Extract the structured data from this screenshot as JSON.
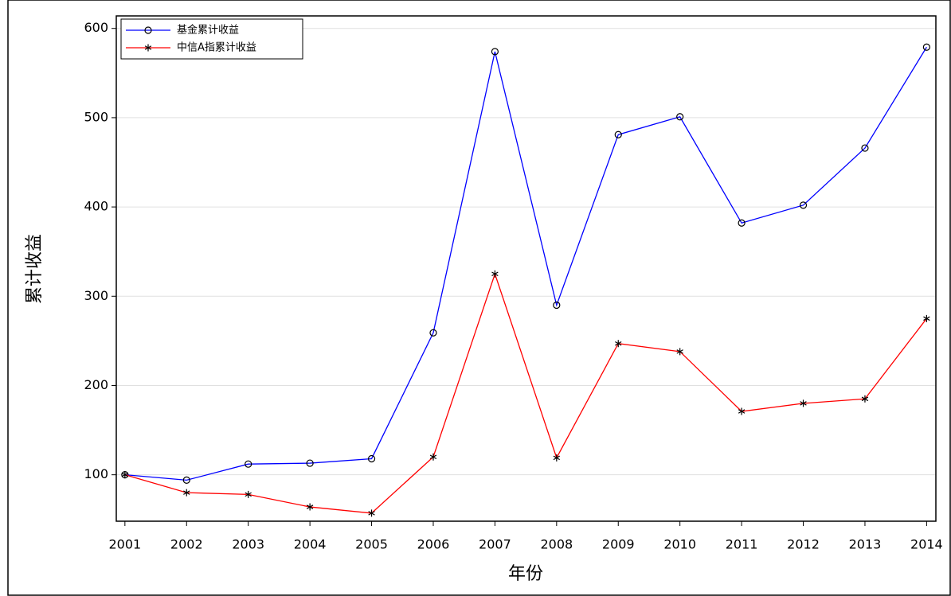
{
  "chart_data": {
    "type": "line",
    "x_label": "年份",
    "y_label": "累计收益",
    "x": [
      2001,
      2002,
      2003,
      2004,
      2005,
      2006,
      2007,
      2008,
      2009,
      2010,
      2011,
      2012,
      2013,
      2014
    ],
    "series": [
      {
        "name": "基金累计收益",
        "color": "#0000ff",
        "marker": "circle",
        "values": [
          100,
          94,
          112,
          113,
          118,
          259,
          574,
          290,
          481,
          501,
          382,
          402,
          466,
          579
        ]
      },
      {
        "name": "中信A指累计收益",
        "color": "#ff0000",
        "marker": "star",
        "values": [
          100,
          80,
          78,
          64,
          57,
          120,
          325,
          119,
          247,
          238,
          171,
          180,
          185,
          275
        ]
      }
    ],
    "xlim": [
      2000.86,
      2014.15
    ],
    "xticks": [
      2001,
      2002,
      2003,
      2004,
      2005,
      2006,
      2007,
      2008,
      2009,
      2010,
      2011,
      2012,
      2013,
      2014
    ],
    "ylim": [
      48,
      614
    ],
    "yticks": [
      100,
      200,
      300,
      400,
      500,
      600
    ],
    "grid": true,
    "legend": "top-left"
  }
}
